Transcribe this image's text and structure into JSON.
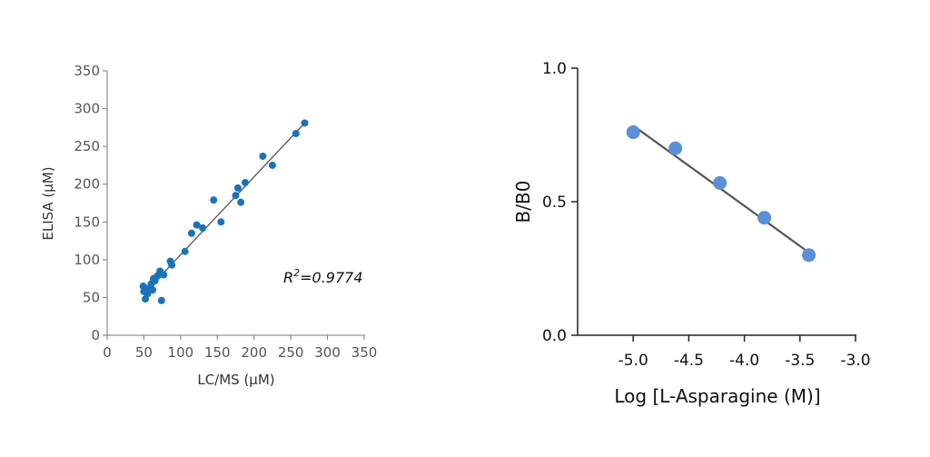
{
  "chart_data": [
    {
      "type": "scatter",
      "xlabel": "LC/MS (μM)",
      "ylabel": "ELISA (μM)",
      "xlim": [
        0,
        350
      ],
      "ylim": [
        0,
        350
      ],
      "x_ticks": [
        "0",
        "50",
        "100",
        "150",
        "200",
        "250",
        "300",
        "350"
      ],
      "y_ticks": [
        "0",
        "50",
        "100",
        "150",
        "200",
        "250",
        "300",
        "350"
      ],
      "annotation": {
        "prefix": "R",
        "sup": "2",
        "suffix": "=0.9774"
      },
      "fit_line": {
        "x": [
          50,
          270
        ],
        "y": [
          55,
          282
        ]
      },
      "color": "#1a73b8",
      "line_color": "#555555",
      "points": [
        {
          "x": 49,
          "y": 65
        },
        {
          "x": 50,
          "y": 58
        },
        {
          "x": 52,
          "y": 48
        },
        {
          "x": 53,
          "y": 62
        },
        {
          "x": 55,
          "y": 55
        },
        {
          "x": 57,
          "y": 60
        },
        {
          "x": 60,
          "y": 68
        },
        {
          "x": 62,
          "y": 60
        },
        {
          "x": 63,
          "y": 75
        },
        {
          "x": 65,
          "y": 72
        },
        {
          "x": 68,
          "y": 78
        },
        {
          "x": 70,
          "y": 80
        },
        {
          "x": 72,
          "y": 85
        },
        {
          "x": 74,
          "y": 46
        },
        {
          "x": 77,
          "y": 80
        },
        {
          "x": 86,
          "y": 98
        },
        {
          "x": 88,
          "y": 93
        },
        {
          "x": 106,
          "y": 111
        },
        {
          "x": 115,
          "y": 135
        },
        {
          "x": 122,
          "y": 146
        },
        {
          "x": 130,
          "y": 142
        },
        {
          "x": 145,
          "y": 179
        },
        {
          "x": 155,
          "y": 150
        },
        {
          "x": 175,
          "y": 185
        },
        {
          "x": 178,
          "y": 195
        },
        {
          "x": 182,
          "y": 176
        },
        {
          "x": 188,
          "y": 202
        },
        {
          "x": 212,
          "y": 237
        },
        {
          "x": 225,
          "y": 225
        },
        {
          "x": 257,
          "y": 267
        },
        {
          "x": 269,
          "y": 281
        }
      ]
    },
    {
      "type": "scatter",
      "xlabel": "Log [L-Asparagine (M)]",
      "ylabel": "B/B0",
      "xlim": [
        -5.5,
        -3.0
      ],
      "ylim": [
        0.0,
        1.0
      ],
      "x_ticks": [
        {
          "v": -5.0,
          "label": "-5.0"
        },
        {
          "v": -4.5,
          "label": "-4.5"
        },
        {
          "v": -4.0,
          "label": "-4.0"
        },
        {
          "v": -3.5,
          "label": "-3.5"
        },
        {
          "v": -3.0,
          "label": "-3.0"
        }
      ],
      "y_ticks": [
        {
          "v": 0.0,
          "label": "0.0"
        },
        {
          "v": 0.5,
          "label": "0.5"
        },
        {
          "v": 1.0,
          "label": "1.0"
        }
      ],
      "fit_line": {
        "x": [
          -5.0,
          -3.42
        ],
        "y": [
          0.785,
          0.31
        ]
      },
      "color": "#5b8fd6",
      "line_color": "#555555",
      "points": [
        {
          "x": -5.0,
          "y": 0.76
        },
        {
          "x": -4.62,
          "y": 0.7
        },
        {
          "x": -4.22,
          "y": 0.57
        },
        {
          "x": -3.82,
          "y": 0.44
        },
        {
          "x": -3.42,
          "y": 0.3
        }
      ]
    }
  ]
}
